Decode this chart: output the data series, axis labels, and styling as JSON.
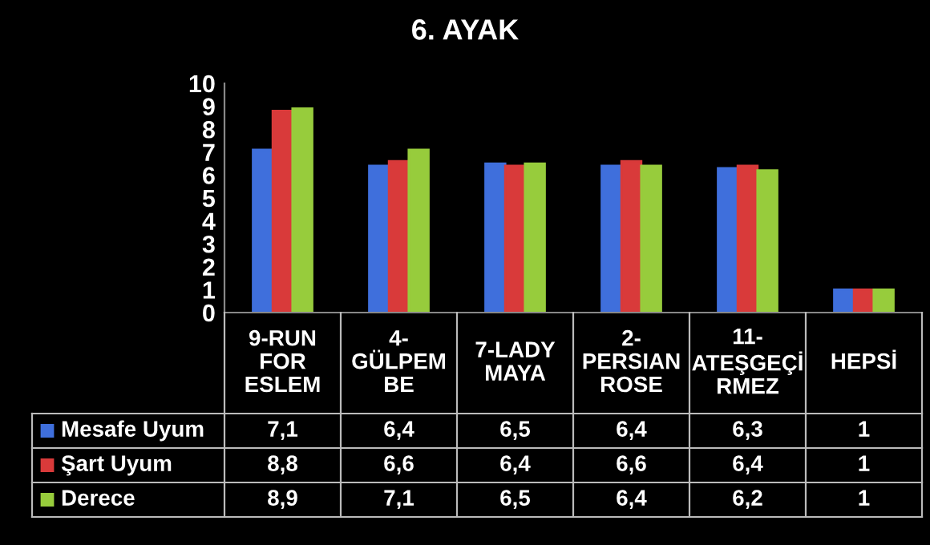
{
  "chart_data": {
    "type": "bar",
    "title": "6. AYAK",
    "categories": [
      "9-RUN\nFOR\nESLEM",
      "4-\nGÜLPEM\nBE",
      "7-LADY\nMAYA",
      "2-\nPERSIAN\nROSE",
      "11-\nATEŞGEÇİ\nRMEZ",
      "HEPSİ"
    ],
    "series": [
      {
        "name": "Mesafe Uyum",
        "color": "#3f6fdc",
        "values": [
          7.1,
          6.4,
          6.5,
          6.4,
          6.3,
          1
        ],
        "value_labels": [
          "7,1",
          "6,4",
          "6,5",
          "6,4",
          "6,3",
          "1"
        ]
      },
      {
        "name": "Şart Uyum",
        "color": "#d93a3a",
        "values": [
          8.8,
          6.6,
          6.4,
          6.6,
          6.4,
          1
        ],
        "value_labels": [
          "8,8",
          "6,6",
          "6,4",
          "6,6",
          "6,4",
          "1"
        ]
      },
      {
        "name": "Derece",
        "color": "#97cc3c",
        "values": [
          8.9,
          7.1,
          6.5,
          6.4,
          6.2,
          1
        ],
        "value_labels": [
          "8,9",
          "7,1",
          "6,5",
          "6,4",
          "6,2",
          "1"
        ]
      }
    ],
    "ylim": [
      0,
      10
    ],
    "yticks": [
      0,
      1,
      2,
      3,
      4,
      5,
      6,
      7,
      8,
      9,
      10
    ],
    "grid": false,
    "legend": "bottom left"
  }
}
